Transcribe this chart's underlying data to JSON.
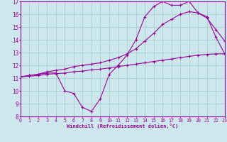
{
  "xlabel": "Windchill (Refroidissement éolien,°C)",
  "background_color": "#cde8ec",
  "grid_color": "#aacdd4",
  "line_color": "#990099",
  "x_min": 0,
  "x_max": 23,
  "y_min": 8,
  "y_max": 17,
  "line1": {
    "x": [
      0,
      1,
      2,
      3,
      4,
      5,
      6,
      7,
      8,
      9,
      10,
      11,
      12,
      13,
      14,
      15,
      16,
      17,
      18,
      19,
      20,
      21,
      22,
      23
    ],
    "y": [
      11.1,
      11.2,
      11.3,
      11.4,
      11.4,
      10.0,
      9.8,
      8.7,
      8.4,
      9.4,
      11.3,
      12.0,
      12.8,
      14.0,
      15.8,
      16.6,
      17.0,
      16.7,
      16.7,
      17.0,
      16.1,
      15.8,
      14.2,
      12.9
    ]
  },
  "line2": {
    "x": [
      0,
      1,
      2,
      3,
      4,
      5,
      6,
      7,
      8,
      9,
      10,
      11,
      12,
      13,
      14,
      15,
      16,
      17,
      18,
      19,
      20,
      21,
      22,
      23
    ],
    "y": [
      11.1,
      11.15,
      11.2,
      11.3,
      11.35,
      11.4,
      11.5,
      11.55,
      11.65,
      11.7,
      11.8,
      11.9,
      12.0,
      12.1,
      12.2,
      12.3,
      12.4,
      12.5,
      12.6,
      12.7,
      12.8,
      12.85,
      12.9,
      12.9
    ]
  },
  "line3": {
    "x": [
      0,
      1,
      2,
      3,
      4,
      5,
      6,
      7,
      8,
      9,
      10,
      11,
      12,
      13,
      14,
      15,
      16,
      17,
      18,
      19,
      20,
      21,
      22,
      23
    ],
    "y": [
      11.1,
      11.2,
      11.3,
      11.5,
      11.6,
      11.7,
      11.9,
      12.0,
      12.1,
      12.2,
      12.4,
      12.6,
      12.9,
      13.3,
      13.9,
      14.5,
      15.2,
      15.6,
      16.0,
      16.2,
      16.1,
      15.7,
      14.8,
      13.9
    ]
  }
}
